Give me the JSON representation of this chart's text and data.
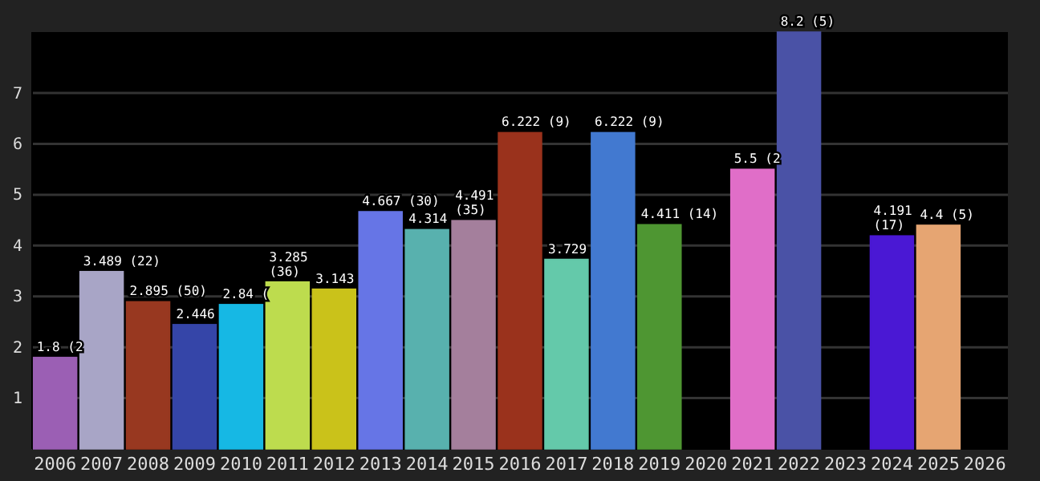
{
  "chart_data": {
    "type": "bar",
    "categories": [
      "2006",
      "2007",
      "2008",
      "2009",
      "2010",
      "2011",
      "2012",
      "2013",
      "2014",
      "2015",
      "2016",
      "2017",
      "2018",
      "2019",
      "2020",
      "2021",
      "2022",
      "2023",
      "2024",
      "2025",
      "2026"
    ],
    "values": [
      1.8,
      3.489,
      2.895,
      2.446,
      2.84,
      3.285,
      3.143,
      4.667,
      4.314,
      4.491,
      6.222,
      3.729,
      6.222,
      4.411,
      0,
      5.5,
      8.2,
      0,
      4.191,
      4.4,
      0
    ],
    "colors": [
      "#9b5fb4",
      "#a8a5c6",
      "#983820",
      "#3545a8",
      "#16b8e4",
      "#bddc4e",
      "#cac21a",
      "#6675e6",
      "#58b1ae",
      "#a47f9c",
      "#9a321c",
      "#64c9aa",
      "#4279d0",
      "#4e9632",
      "#e06ac6",
      "#e06ec8",
      "#4a52a6",
      "#4c9b32",
      "#4a18d4",
      "#e6a572",
      "#c04aa0"
    ],
    "value_labels": [
      "1.8 (2",
      "3.489 (22)",
      "2.895 (50)",
      "2.446",
      "2.84 (",
      "3.285 (36)",
      "3.143",
      "4.667 (30)",
      "4.314",
      "4.491 (35)",
      "6.222 (9)",
      "3.729",
      "6.222 (9)",
      "4.411 (14)",
      null,
      "5.5 (2",
      "8.2 (5)",
      null,
      "4.191 (17)",
      "4.4 (5)",
      null
    ],
    "ylim": [
      0,
      8.2
    ],
    "yticks": [
      1,
      2,
      3,
      4,
      5,
      6,
      7
    ],
    "grid": "y"
  }
}
